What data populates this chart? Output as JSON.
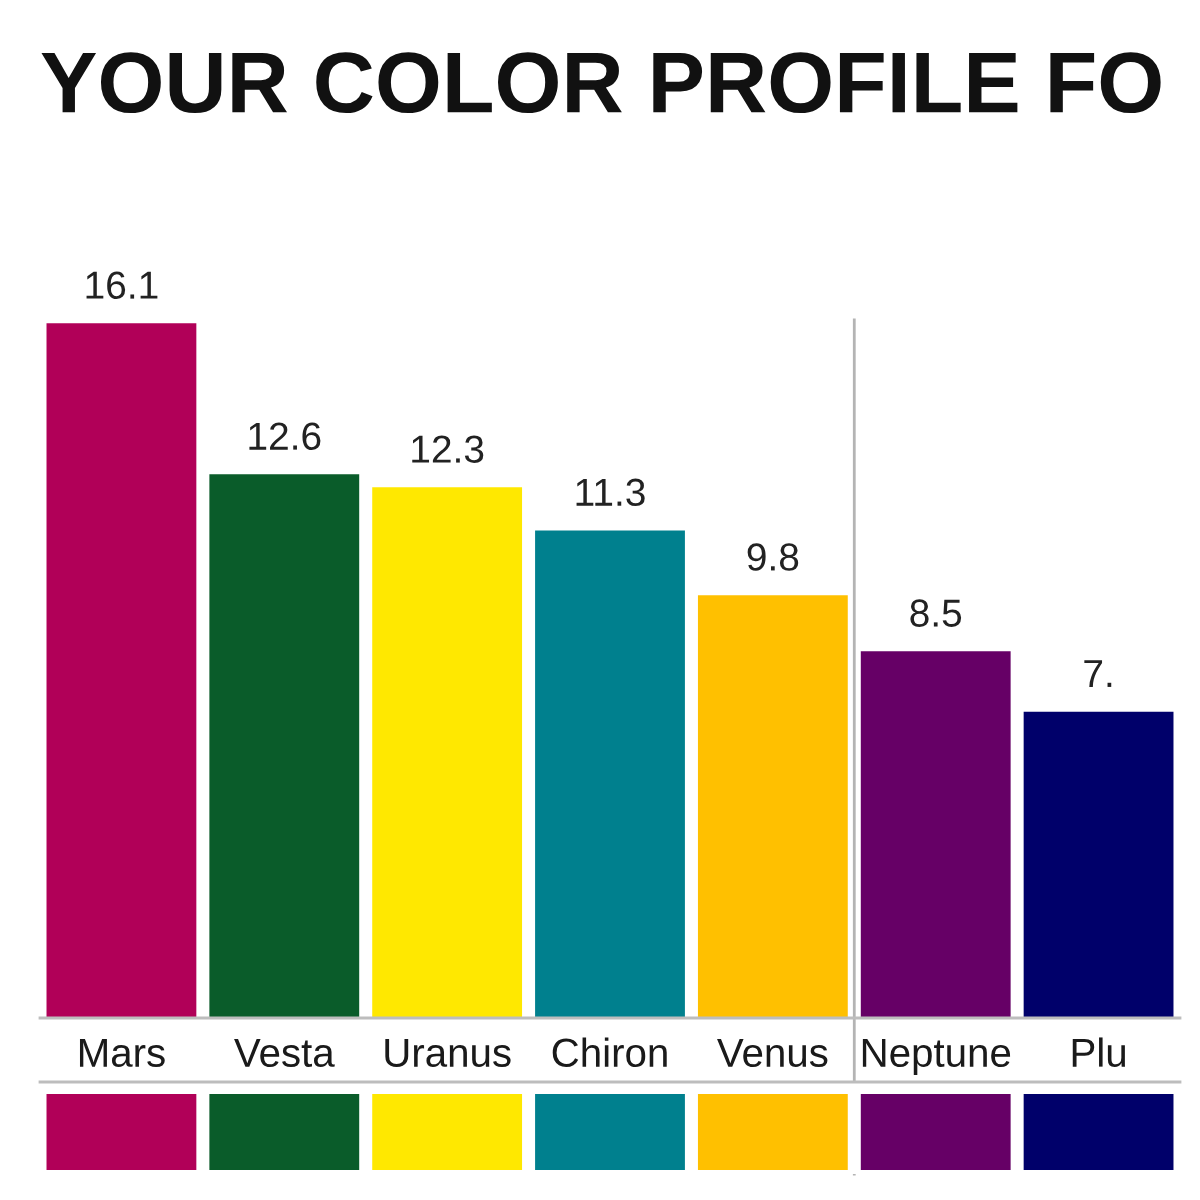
{
  "chart_data": {
    "type": "bar",
    "title": "YOUR COLOR PROFILE FO",
    "categories": [
      "Mars",
      "Vesta",
      "Uranus",
      "Chiron",
      "Venus",
      "Neptune",
      "Plu"
    ],
    "values": [
      16.1,
      12.6,
      12.3,
      11.3,
      9.8,
      8.5,
      7.1
    ],
    "value_labels": [
      "16.1",
      "12.6",
      "12.3",
      "11.3",
      "9.8",
      "8.5",
      "7."
    ],
    "colors": [
      "#b10058",
      "#0a5c2a",
      "#ffe800",
      "#00808e",
      "#ffc000",
      "#660066",
      "#00006a"
    ],
    "tick_labels": "x"
  }
}
